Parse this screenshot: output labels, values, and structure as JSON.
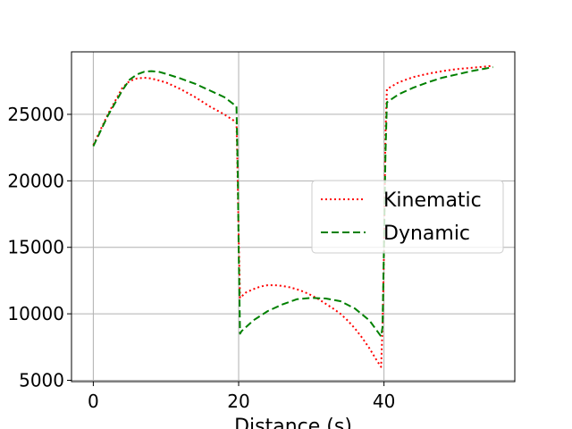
{
  "chart_data": {
    "type": "line",
    "xlabel": "Distance (s)",
    "ylabel": "",
    "xlim": [
      -3,
      58
    ],
    "ylim": [
      4900,
      29700
    ],
    "x_ticks": [
      0,
      20,
      40
    ],
    "y_ticks": [
      5000,
      10000,
      15000,
      20000,
      25000
    ],
    "x_tick_labels": [
      "0",
      "20",
      "40"
    ],
    "y_tick_labels": [
      "5000",
      "10000",
      "15000",
      "20000",
      "25000"
    ],
    "grid": true,
    "legend_position": "center-right",
    "series": [
      {
        "name": "Kinematic",
        "color": "#ff0000",
        "style": "dotted",
        "points": [
          [
            0,
            22700
          ],
          [
            2,
            25000
          ],
          [
            4,
            27000
          ],
          [
            5,
            27500
          ],
          [
            6,
            27700
          ],
          [
            7,
            27750
          ],
          [
            8,
            27700
          ],
          [
            10,
            27400
          ],
          [
            12,
            26900
          ],
          [
            14,
            26300
          ],
          [
            16,
            25600
          ],
          [
            18,
            25000
          ],
          [
            19.7,
            24400
          ],
          [
            19.8,
            22000
          ],
          [
            20,
            16000
          ],
          [
            20.2,
            11200
          ],
          [
            21,
            11600
          ],
          [
            22,
            11850
          ],
          [
            23,
            12050
          ],
          [
            24,
            12150
          ],
          [
            25,
            12150
          ],
          [
            26,
            12100
          ],
          [
            27,
            12000
          ],
          [
            28,
            11850
          ],
          [
            29,
            11650
          ],
          [
            30,
            11400
          ],
          [
            31,
            11100
          ],
          [
            32,
            10750
          ],
          [
            33,
            10400
          ],
          [
            34,
            10000
          ],
          [
            35,
            9500
          ],
          [
            36,
            8900
          ],
          [
            37,
            8200
          ],
          [
            38,
            7400
          ],
          [
            39,
            6500
          ],
          [
            39.6,
            6000
          ],
          [
            39.8,
            9000
          ],
          [
            40,
            14500
          ],
          [
            40.2,
            23500
          ],
          [
            40.4,
            26900
          ],
          [
            42,
            27400
          ],
          [
            44,
            27800
          ],
          [
            46,
            28050
          ],
          [
            48,
            28250
          ],
          [
            50,
            28400
          ],
          [
            52,
            28500
          ],
          [
            54,
            28600
          ],
          [
            55,
            28650
          ]
        ]
      },
      {
        "name": "Dynamic",
        "color": "#008000",
        "style": "dashed",
        "points": [
          [
            0,
            22600
          ],
          [
            2,
            24900
          ],
          [
            4,
            26800
          ],
          [
            5,
            27600
          ],
          [
            6,
            28000
          ],
          [
            7,
            28200
          ],
          [
            8,
            28250
          ],
          [
            9,
            28200
          ],
          [
            10,
            28050
          ],
          [
            12,
            27700
          ],
          [
            14,
            27300
          ],
          [
            16,
            26800
          ],
          [
            18,
            26300
          ],
          [
            19.7,
            25600
          ],
          [
            19.9,
            20000
          ],
          [
            20,
            15000
          ],
          [
            20.2,
            8500
          ],
          [
            20.4,
            8700
          ],
          [
            22,
            9500
          ],
          [
            24,
            10200
          ],
          [
            26,
            10700
          ],
          [
            28,
            11100
          ],
          [
            30,
            11200
          ],
          [
            32,
            11150
          ],
          [
            34,
            10950
          ],
          [
            36,
            10400
          ],
          [
            38,
            9500
          ],
          [
            39.6,
            8300
          ],
          [
            39.8,
            9000
          ],
          [
            40,
            15000
          ],
          [
            40.2,
            22000
          ],
          [
            40.4,
            25900
          ],
          [
            42,
            26500
          ],
          [
            44,
            27000
          ],
          [
            46,
            27400
          ],
          [
            48,
            27750
          ],
          [
            50,
            28000
          ],
          [
            52,
            28250
          ],
          [
            54,
            28450
          ],
          [
            55,
            28550
          ]
        ]
      }
    ]
  }
}
